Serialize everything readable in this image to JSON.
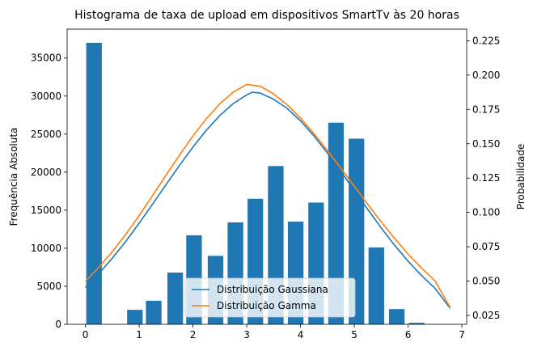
{
  "chart_data": {
    "type": "bar",
    "title": "Histograma de taxa de upload em dispositivos SmartTv às 20 horas",
    "xlabel": "",
    "ylabel": "Frequência Absoluta",
    "y2label": "Probabilidade",
    "xlim": [
      -0.34,
      7.09
    ],
    "ylim": [
      0,
      38800
    ],
    "y2lim": [
      0.0185,
      0.2335
    ],
    "x_ticks": [
      "0",
      "1",
      "2",
      "3",
      "4",
      "5",
      "6",
      "7"
    ],
    "x_tick_values": [
      0,
      1,
      2,
      3,
      4,
      5,
      6,
      7
    ],
    "y_ticks": [
      "0",
      "5000",
      "10000",
      "15000",
      "20000",
      "25000",
      "30000",
      "35000"
    ],
    "y_tick_values": [
      0,
      5000,
      10000,
      15000,
      20000,
      25000,
      30000,
      35000
    ],
    "y2_ticks": [
      "0.025",
      "0.050",
      "0.075",
      "0.100",
      "0.125",
      "0.150",
      "0.175",
      "0.200",
      "0.225"
    ],
    "y2_tick_values": [
      0.025,
      0.05,
      0.075,
      0.1,
      0.125,
      0.15,
      0.175,
      0.2,
      0.225
    ],
    "bar_width": 0.29,
    "bars": [
      {
        "x": 0.16,
        "value": 37000
      },
      {
        "x": 0.92,
        "value": 1900
      },
      {
        "x": 1.27,
        "value": 3100
      },
      {
        "x": 1.67,
        "value": 6800
      },
      {
        "x": 2.02,
        "value": 11700
      },
      {
        "x": 2.42,
        "value": 9000
      },
      {
        "x": 2.79,
        "value": 13400
      },
      {
        "x": 3.16,
        "value": 16500
      },
      {
        "x": 3.54,
        "value": 20800
      },
      {
        "x": 3.91,
        "value": 13500
      },
      {
        "x": 4.29,
        "value": 16000
      },
      {
        "x": 4.66,
        "value": 26500
      },
      {
        "x": 5.04,
        "value": 24400
      },
      {
        "x": 5.41,
        "value": 10100
      },
      {
        "x": 5.79,
        "value": 2000
      },
      {
        "x": 6.16,
        "value": 200
      }
    ],
    "series": [
      {
        "name": "Distribuição Gaussiana",
        "color": "#1f77b4",
        "x": [
          0,
          0.25,
          0.5,
          0.75,
          1,
          1.25,
          1.5,
          1.75,
          2,
          2.25,
          2.5,
          2.75,
          3,
          3.1,
          3.25,
          3.5,
          3.75,
          4,
          4.25,
          4.5,
          4.75,
          5,
          5.25,
          5.5,
          5.75,
          6,
          6.25,
          6.5,
          6.78
        ],
        "y": [
          0.0454,
          0.0553,
          0.0666,
          0.0789,
          0.0922,
          0.1061,
          0.1203,
          0.1343,
          0.1476,
          0.1599,
          0.1706,
          0.1793,
          0.1856,
          0.1875,
          0.1869,
          0.1825,
          0.1758,
          0.1667,
          0.1557,
          0.1433,
          0.1299,
          0.116,
          0.1022,
          0.0887,
          0.0761,
          0.0645,
          0.054,
          0.0448,
          0.0303
        ]
      },
      {
        "name": "Distribuição Gamma",
        "color": "#ff7f0e",
        "x": [
          0,
          0.25,
          0.5,
          0.75,
          1,
          1.25,
          1.5,
          1.75,
          2,
          2.25,
          2.5,
          2.75,
          3,
          3.25,
          3.5,
          3.75,
          4,
          4.25,
          4.5,
          4.75,
          5,
          5.25,
          5.5,
          5.75,
          6,
          6.25,
          6.5,
          6.78
        ],
        "y": [
          0.0499,
          0.06,
          0.0714,
          0.084,
          0.0977,
          0.1123,
          0.1272,
          0.1418,
          0.1557,
          0.1683,
          0.1791,
          0.1877,
          0.1932,
          0.1919,
          0.1864,
          0.1785,
          0.1687,
          0.1574,
          0.1451,
          0.1322,
          0.119,
          0.1059,
          0.0932,
          0.0811,
          0.0698,
          0.0595,
          0.0502,
          0.031
        ]
      }
    ],
    "legend_position": "lower-center",
    "grid": false
  }
}
